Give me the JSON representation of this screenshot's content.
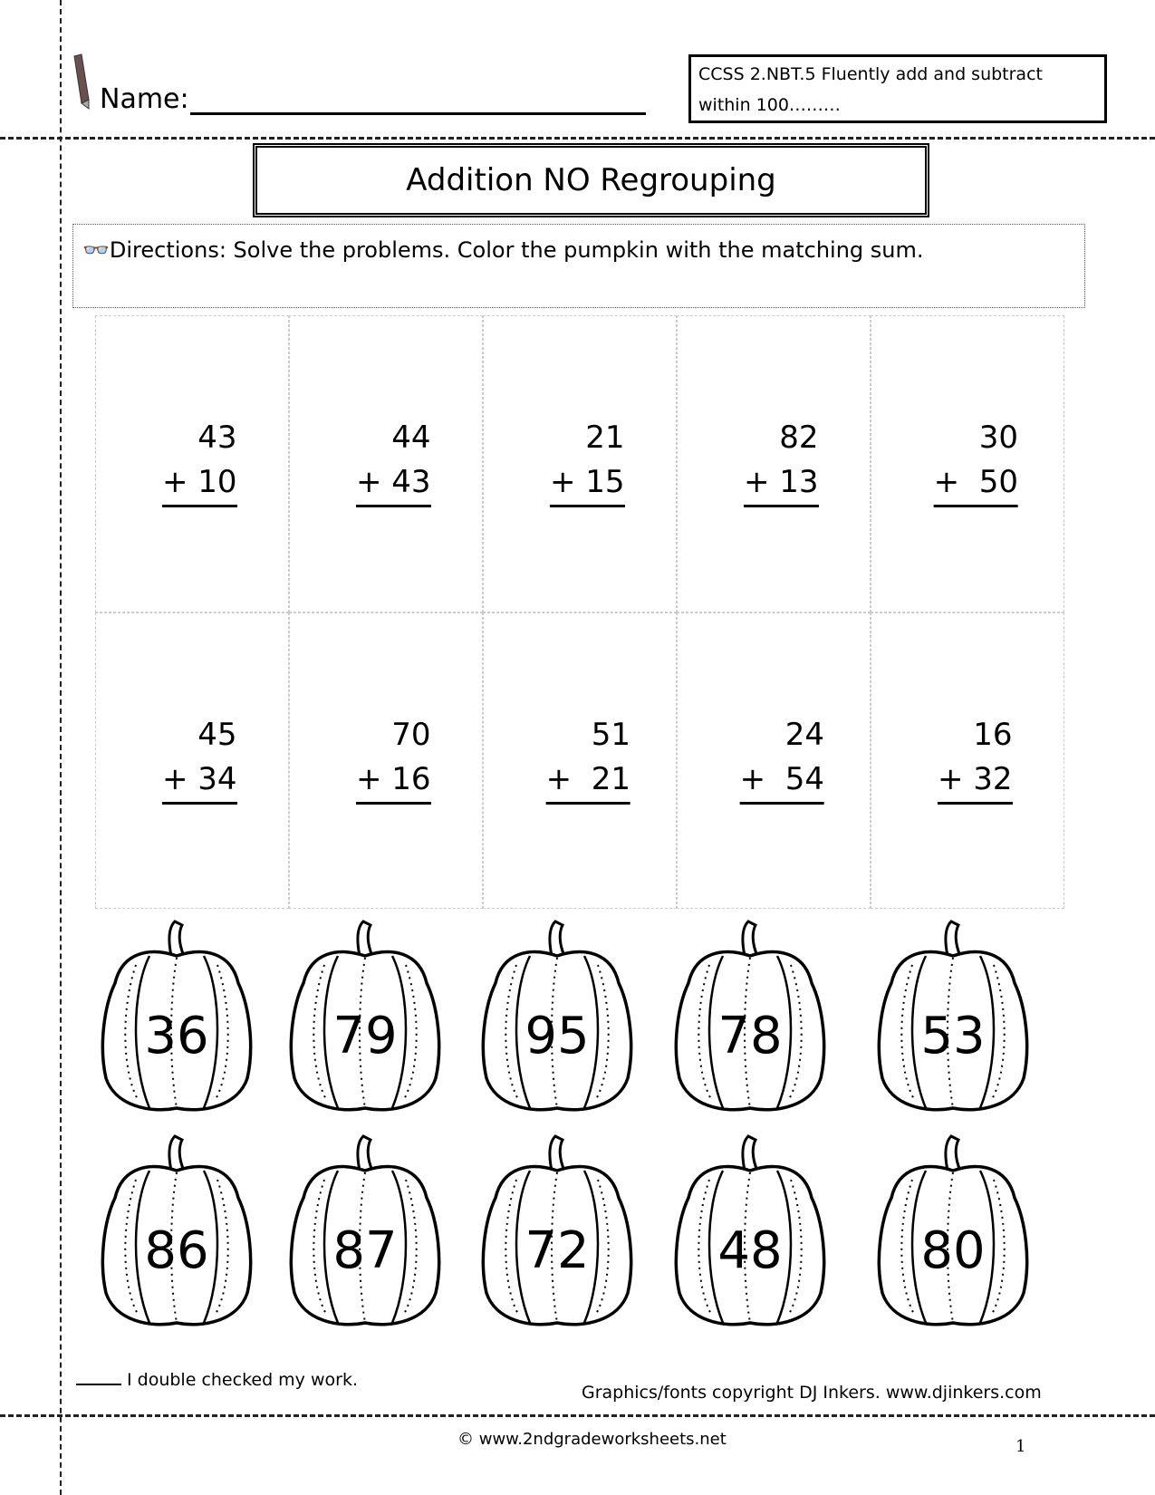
{
  "header": {
    "name_label": "Name:",
    "standard": "CCSS  2.NBT.5  Fluently add and subtract within 100………"
  },
  "title": "Addition NO Regrouping",
  "directions": "Directions: Solve the problems.  Color the pumpkin with the matching sum.",
  "problems": [
    {
      "top": "43",
      "bottom": "+ 10"
    },
    {
      "top": "44",
      "bottom": "+ 43"
    },
    {
      "top": "21",
      "bottom": "+ 15"
    },
    {
      "top": "82",
      "bottom": "+ 13"
    },
    {
      "top": "30",
      "bottom": "+  50"
    },
    {
      "top": "45",
      "bottom": "+ 34"
    },
    {
      "top": "70",
      "bottom": "+ 16"
    },
    {
      "top": "51",
      "bottom": "+  21"
    },
    {
      "top": "24",
      "bottom": "+  54"
    },
    {
      "top": "16",
      "bottom": "+ 32"
    }
  ],
  "pumpkins": [
    "36",
    "79",
    "95",
    "78",
    "53",
    "86",
    "87",
    "72",
    "48",
    "80"
  ],
  "footer": {
    "checked": "I double checked my work.",
    "credit": "Graphics/fonts copyright DJ Inkers. www.djinkers.com",
    "copyright": "© www.2ndgradeworksheets.net",
    "page": "1"
  }
}
